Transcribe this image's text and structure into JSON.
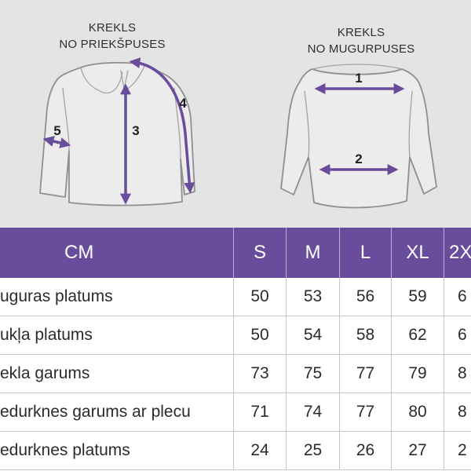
{
  "diagram": {
    "front": {
      "title": [
        "KREKLS",
        "NO PRIEKŠPUSES"
      ],
      "labels": [
        "3",
        "4",
        "5"
      ]
    },
    "back": {
      "title": [
        "KREKLS",
        "NO MUGURPUSES"
      ],
      "labels": [
        "1",
        "2"
      ]
    }
  },
  "icons": {
    "front": "shirt-front-icon",
    "back": "shirt-back-icon"
  },
  "colors": {
    "accent_purple": "#6a4c9c",
    "header_text": "#ffffff",
    "diagram_background": "#e4e4e4"
  },
  "table": {
    "unit_header": "CM",
    "sizes": [
      "S",
      "M",
      "L",
      "XL",
      "2X"
    ],
    "rows": [
      {
        "label": "uguras platums",
        "values": [
          "50",
          "53",
          "56",
          "59",
          "6"
        ]
      },
      {
        "label": "ukļa platums",
        "values": [
          "50",
          "54",
          "58",
          "62",
          "6"
        ]
      },
      {
        "label": "ekla garums",
        "values": [
          "73",
          "75",
          "77",
          "79",
          "8"
        ]
      },
      {
        "label": "edurknes garums ar plecu",
        "values": [
          "71",
          "74",
          "77",
          "80",
          "8"
        ]
      },
      {
        "label": "edurknes platums",
        "values": [
          "24",
          "25",
          "26",
          "27",
          "2"
        ]
      }
    ]
  }
}
